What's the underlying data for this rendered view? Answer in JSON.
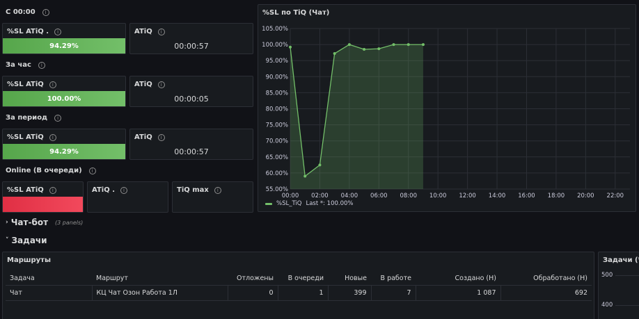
{
  "rows": {
    "since_midnight": "С 00:00",
    "per_hour": "За час",
    "per_period": "За период",
    "online": "Online (В очереди)"
  },
  "stats": {
    "sl1": {
      "title": "%SL ATiQ .",
      "value": "94.29%"
    },
    "atiq1": {
      "title": "ATiQ",
      "value": "00:00:57"
    },
    "sl2": {
      "title": "%SL ATiQ",
      "value": "100.00%"
    },
    "atiq2": {
      "title": "ATiQ",
      "value": "00:00:05"
    },
    "sl3": {
      "title": "%SL ATiQ",
      "value": "94.29%"
    },
    "atiq3": {
      "title": "ATiQ",
      "value": "00:00:57"
    },
    "sl4": {
      "title": "%SL ATiQ"
    },
    "atiq4": {
      "title": "ATiQ ."
    },
    "tiqmax": {
      "title": "TiQ max"
    }
  },
  "chart_panel_title": "%SL по TiQ (Чат)",
  "legend": {
    "series": "%SL_TiQ",
    "last": "Last *: 100.00%"
  },
  "colors": {
    "accent_green": "#73bf69",
    "red": "#f2495c",
    "background": "#111217",
    "panel": "#181b1f"
  },
  "chart_data": {
    "type": "area",
    "title": "%SL по TiQ (Чат)",
    "x_ticks": [
      "00:00",
      "02:00",
      "04:00",
      "06:00",
      "08:00",
      "10:00",
      "12:00",
      "14:00",
      "16:00",
      "18:00",
      "20:00",
      "22:00"
    ],
    "y_ticks": [
      "55.00%",
      "60.00%",
      "65.00%",
      "70.00%",
      "75.00%",
      "80.00%",
      "85.00%",
      "90.00%",
      "95.00%",
      "100.00%",
      "105.00%"
    ],
    "ylim": [
      55,
      105
    ],
    "xlim": [
      0,
      23
    ],
    "series": [
      {
        "name": "%SL_TiQ",
        "x": [
          0,
          1,
          2,
          3,
          4,
          5,
          6,
          7,
          8,
          9
        ],
        "values": [
          99.2,
          59.0,
          62.5,
          97.2,
          100.0,
          98.5,
          98.7,
          100.0,
          100.0,
          100.0
        ]
      }
    ],
    "grid": true,
    "legend": "bottom-left"
  },
  "sections": {
    "chatbot": {
      "label": "Чат-бот",
      "panels": "(3 panels)"
    },
    "tasks": {
      "label": "Задачи"
    }
  },
  "routes": {
    "title": "Маршруты",
    "columns": [
      "Задача",
      "Маршрут",
      "Отложены",
      "В очереди",
      "Новые",
      "В работе",
      "Создано (Н)",
      "Обработано (Н)"
    ],
    "rows": [
      [
        "Чат",
        "КЦ Чат Озон Работа 1Л",
        "0",
        "1",
        "399",
        "7",
        "1 087",
        "692"
      ]
    ]
  },
  "side_panel": {
    "title": "Задачи (Ча",
    "y_ticks": [
      "500",
      "400"
    ]
  }
}
